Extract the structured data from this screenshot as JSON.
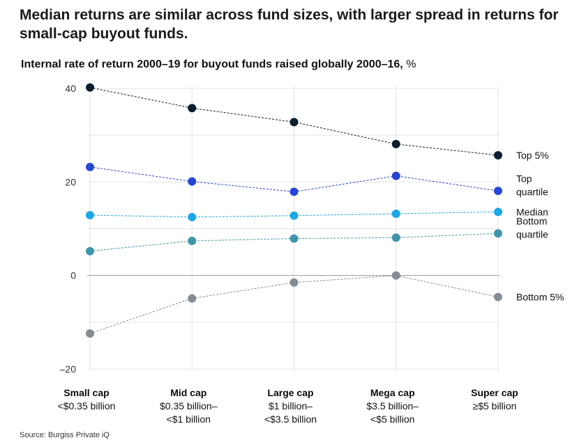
{
  "headline": "Median returns are similar across fund sizes, with larger spread in returns for small-cap buyout funds.",
  "subtitle": {
    "bold": "Internal rate of return 2000–19 for buyout funds raised globally 2000–16,",
    "unit": "%"
  },
  "source": "Source: Burgiss Private iQ",
  "colors": {
    "top5": "#0b1d2e",
    "top_quartile": "#2446d6",
    "median": "#1ca7e6",
    "bottom_quartile": "#3f95aa",
    "bottom5": "#858c94",
    "grid": "#e4e4e4",
    "zero_line": "#9a9a9a"
  },
  "chart_data": {
    "type": "line",
    "title": "Internal rate of return 2000–19 for buyout funds raised globally 2000–16, %",
    "categories": [
      {
        "name": "Small cap",
        "range": [
          "<$0.35 billion"
        ]
      },
      {
        "name": "Mid cap",
        "range": [
          "$0.35 billion–",
          "<$1 billion"
        ]
      },
      {
        "name": "Large cap",
        "range": [
          "$1 billion–",
          "<$3.5 billion"
        ]
      },
      {
        "name": "Mega cap",
        "range": [
          "$3.5 billion–",
          "<$5 billion"
        ]
      },
      {
        "name": "Super cap",
        "range": [
          "≥$5 billion"
        ]
      }
    ],
    "ylim": [
      -20,
      40
    ],
    "yticks": [
      40,
      20,
      0,
      -20
    ],
    "ytick_labels": [
      "40",
      "20",
      "0",
      "–20"
    ],
    "grid": true,
    "series": [
      {
        "key": "top5",
        "name": "Top 5%",
        "label_lines": [
          "Top 5%"
        ],
        "color_key": "top5",
        "values": [
          40.2,
          35.8,
          32.8,
          28.1,
          25.7
        ]
      },
      {
        "key": "top_quartile",
        "name": "Top quartile",
        "label_lines": [
          "Top",
          "quartile"
        ],
        "color_key": "top_quartile",
        "values": [
          23.2,
          20.1,
          17.9,
          21.3,
          18.1
        ]
      },
      {
        "key": "median",
        "name": "Median",
        "label_lines": [
          "Median"
        ],
        "color_key": "median",
        "values": [
          12.9,
          12.5,
          12.8,
          13.2,
          13.6
        ]
      },
      {
        "key": "bottom_quartile",
        "name": "Bottom quartile",
        "label_lines": [
          "Bottom",
          "quartile"
        ],
        "color_key": "bottom_quartile",
        "values": [
          5.2,
          7.4,
          7.9,
          8.1,
          9.0
        ]
      },
      {
        "key": "bottom5",
        "name": "Bottom 5%",
        "label_lines": [
          "Bottom 5%"
        ],
        "color_key": "bottom5",
        "values": [
          -12.4,
          -4.9,
          -1.5,
          0.0,
          -4.6
        ]
      }
    ]
  }
}
